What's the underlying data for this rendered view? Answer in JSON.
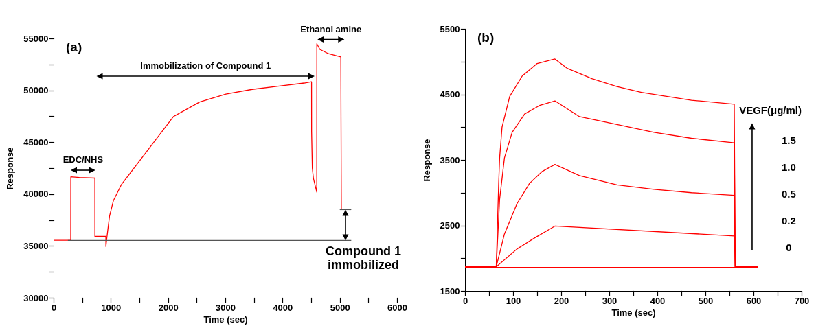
{
  "chart_data": [
    {
      "type": "line",
      "title": "(a)",
      "xlabel": "Time (sec)",
      "ylabel": "Response",
      "color": "#ff0000",
      "x": [
        0,
        300,
        301,
        450,
        721,
        722,
        913,
        914,
        932,
        977,
        1046,
        1183,
        1640,
        2096,
        2553,
        3009,
        3470,
        3922,
        4378,
        4507,
        4508,
        4520,
        4540,
        4598,
        4599,
        4653,
        4790,
        5018,
        5027,
        5064
      ],
      "values": [
        35550,
        35550,
        41660,
        41600,
        41540,
        35920,
        35920,
        34950,
        35840,
        37860,
        39380,
        40900,
        44190,
        47480,
        48870,
        49630,
        50090,
        50400,
        50700,
        50820,
        46000,
        42500,
        41500,
        40190,
        54490,
        53940,
        53560,
        53230,
        38570,
        38500
      ],
      "xlim": [
        0,
        6000
      ],
      "xticks": [
        0,
        {
          "value": 500,
          "label": null
        },
        1000,
        {
          "value": 1500,
          "label": null
        },
        2000,
        {
          "value": 2500,
          "label": null
        },
        3000,
        {
          "value": 3500,
          "label": null
        },
        4000,
        {
          "value": 4500,
          "label": null
        },
        5000,
        {
          "value": 5500,
          "label": null
        },
        6000
      ],
      "ylim": [
        30000,
        55000
      ],
      "yticks": [
        30000,
        {
          "value": 32500,
          "label": null
        },
        35000,
        {
          "value": 37500,
          "label": null
        },
        40000,
        {
          "value": 42500,
          "label": null
        },
        45000,
        {
          "value": 47500,
          "label": null
        },
        50000,
        {
          "value": 52500,
          "label": null
        },
        55000
      ],
      "annotations": [
        "EDC/NHS",
        "Immobilization of Compound 1",
        "Ethanol amine",
        "Compound 1\nimmobilized"
      ],
      "ref_lines": [
        {
          "axis": "y",
          "value": 35530
        }
      ]
    },
    {
      "type": "line",
      "title": "(b)",
      "xlabel": "Time (sec)",
      "ylabel": "Response",
      "legend_title": "VEGF(μg/ml)",
      "series": [
        {
          "name": "1.5",
          "color": "#ff0000",
          "x": [
            0,
            65,
            70,
            72,
            77,
            93,
            119,
            150,
            187,
            212,
            264,
            316,
            367,
            419,
            471,
            560,
            562,
            610
          ],
          "values": [
            1870,
            1870,
            3140,
            3530,
            4000,
            4470,
            4780,
            4970,
            5040,
            4900,
            4740,
            4620,
            4530,
            4470,
            4410,
            4350,
            1870,
            1880
          ]
        },
        {
          "name": "1.0",
          "color": "#ff0000",
          "x": [
            0,
            65,
            72,
            82,
            98,
            124,
            155,
            187,
            238,
            316,
            393,
            471,
            560,
            562,
            610
          ],
          "values": [
            1870,
            1870,
            2900,
            3530,
            3920,
            4200,
            4330,
            4400,
            4160,
            4040,
            3920,
            3830,
            3760,
            1870,
            1870
          ]
        },
        {
          "name": "0.5",
          "color": "#ff0000",
          "x": [
            0,
            65,
            82,
            108,
            134,
            160,
            187,
            238,
            316,
            393,
            471,
            560,
            562,
            610
          ],
          "values": [
            1870,
            1870,
            2370,
            2830,
            3140,
            3320,
            3430,
            3260,
            3120,
            3050,
            3000,
            2960,
            1870,
            1870
          ]
        },
        {
          "name": "0.2",
          "color": "#ff0000",
          "x": [
            0,
            65,
            108,
            145,
            187,
            560,
            562,
            610
          ],
          "values": [
            1870,
            1870,
            2140,
            2310,
            2490,
            2340,
            1870,
            1860
          ]
        },
        {
          "name": "0",
          "color": "#ff0000",
          "x": [
            0,
            610
          ],
          "values": [
            1860,
            1860
          ]
        }
      ],
      "xlim": [
        0,
        700
      ],
      "xticks": [
        0,
        {
          "value": 50,
          "label": null
        },
        100,
        {
          "value": 150,
          "label": null
        },
        200,
        {
          "value": 250,
          "label": null
        },
        300,
        {
          "value": 350,
          "label": null
        },
        400,
        {
          "value": 450,
          "label": null
        },
        500,
        {
          "value": 550,
          "label": null
        },
        600,
        {
          "value": 650,
          "label": null
        },
        700
      ],
      "ylim": [
        1500,
        5500
      ],
      "yticks": [
        1500,
        {
          "value": 2000,
          "label": null
        },
        2500,
        {
          "value": 3000,
          "label": null
        },
        3500,
        {
          "value": 4000,
          "label": null
        },
        4500,
        {
          "value": 5000,
          "label": null
        },
        5500
      ]
    }
  ]
}
